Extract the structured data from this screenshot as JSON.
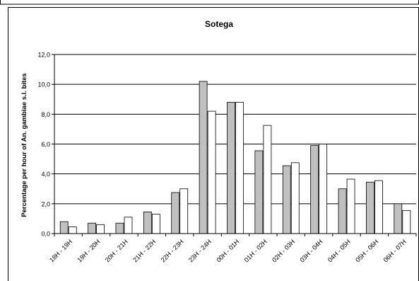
{
  "chart_data": {
    "type": "bar",
    "title": "Sotega",
    "xlabel": "",
    "ylabel": "Percentage per hour of An. gambiae s.l. bites",
    "ylim": [
      0,
      12
    ],
    "yticks": [
      "0,0",
      "2,0",
      "4,0",
      "6,0",
      "8,0",
      "10,0",
      "12,0"
    ],
    "grid": true,
    "legend": "none",
    "categories": [
      "18H - 19H",
      "19H - 20H",
      "20H - 21H",
      "21H - 22H",
      "22H - 23H",
      "23H - 24H",
      "00H - 01H",
      "01H - 02H",
      "02H - 03H",
      "03H - 04H",
      "04H - 05H",
      "05H - 06H",
      "06H - 07H"
    ],
    "series": [
      {
        "color": "#c0c0c0",
        "values": [
          0.8,
          0.7,
          0.7,
          1.45,
          2.75,
          10.2,
          8.8,
          5.55,
          4.55,
          5.9,
          3.0,
          3.45,
          2.0
        ]
      },
      {
        "color": "#ffffff",
        "values": [
          0.45,
          0.6,
          1.1,
          1.3,
          3.0,
          8.2,
          8.8,
          7.25,
          4.75,
          6.0,
          3.65,
          3.55,
          1.55
        ]
      }
    ]
  }
}
